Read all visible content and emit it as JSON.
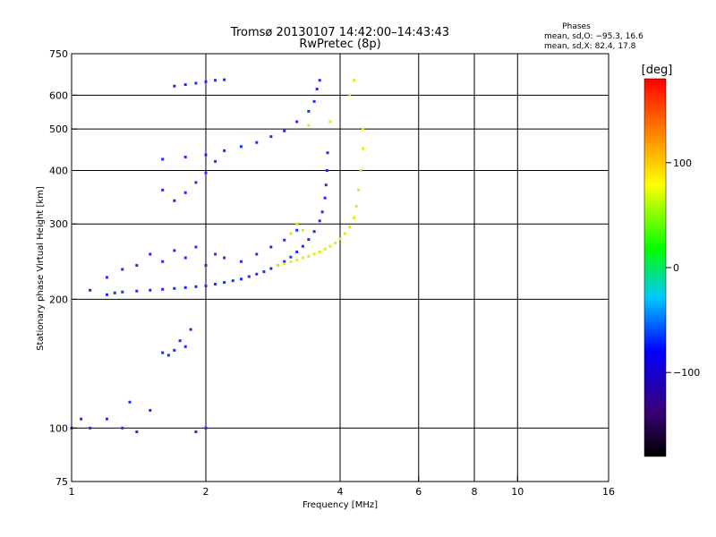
{
  "chart_data": {
    "type": "scatter",
    "title": "Tromsø 20130107 14:42:00–14:43:43",
    "subtitle": "RwPretec (8p)",
    "xlabel": "Frequency [MHz]",
    "ylabel": "Stationary phase Virtual Height [km]",
    "x_scale": "log",
    "y_scale": "log",
    "xlim": [
      1,
      16
    ],
    "ylim": [
      75,
      750
    ],
    "x_ticks": [
      {
        "v": 1,
        "label": "1"
      },
      {
        "v": 2,
        "label": "2"
      },
      {
        "v": 4,
        "label": "4"
      },
      {
        "v": 6,
        "label": "6"
      },
      {
        "v": 8,
        "label": "8"
      },
      {
        "v": 10,
        "label": "10"
      },
      {
        "v": 16,
        "label": "16"
      }
    ],
    "y_ticks": [
      {
        "v": 75,
        "label": "75"
      },
      {
        "v": 100,
        "label": "100"
      },
      {
        "v": 200,
        "label": "200"
      },
      {
        "v": 300,
        "label": "300"
      },
      {
        "v": 400,
        "label": "400"
      },
      {
        "v": 500,
        "label": "500"
      },
      {
        "v": 600,
        "label": "600"
      },
      {
        "v": 750,
        "label": "750"
      }
    ],
    "grid_x": [
      2,
      4,
      6,
      8,
      10
    ],
    "grid_y": [
      100,
      200,
      300,
      400,
      500,
      600
    ],
    "stats": {
      "heading": "Phases",
      "line_o": "mean, sd,O: −95.3, 16.6",
      "line_x": "mean, sd,X:  82.4, 17.8"
    },
    "colorbar": {
      "label": "[deg]",
      "range": [
        -180,
        180
      ],
      "ticks": [
        {
          "v": 100,
          "label": "100"
        },
        {
          "v": 0,
          "label": "0"
        },
        {
          "v": -100,
          "label": "−100"
        }
      ]
    },
    "series": [
      {
        "trace": "O-mode lower",
        "phase": -100,
        "points": [
          [
            1.2,
            205
          ],
          [
            1.25,
            207
          ],
          [
            1.3,
            208
          ],
          [
            1.4,
            209
          ],
          [
            1.5,
            210
          ],
          [
            1.6,
            211
          ],
          [
            1.7,
            212
          ],
          [
            1.8,
            213
          ],
          [
            1.9,
            214
          ],
          [
            2.0,
            215
          ],
          [
            2.1,
            217
          ],
          [
            2.2,
            219
          ],
          [
            2.3,
            221
          ],
          [
            2.4,
            223
          ],
          [
            2.5,
            226
          ],
          [
            2.6,
            229
          ],
          [
            2.7,
            232
          ],
          [
            2.8,
            236
          ],
          [
            2.9,
            240
          ],
          [
            3.0,
            245
          ],
          [
            3.1,
            251
          ],
          [
            3.2,
            258
          ],
          [
            3.3,
            266
          ],
          [
            3.4,
            276
          ],
          [
            3.5,
            288
          ],
          [
            3.6,
            305
          ],
          [
            3.65,
            320
          ],
          [
            3.7,
            345
          ],
          [
            3.72,
            370
          ],
          [
            3.74,
            400
          ],
          [
            3.75,
            440
          ]
        ]
      },
      {
        "trace": "O-mode upper branch",
        "phase": -100,
        "points": [
          [
            1.6,
            425
          ],
          [
            1.8,
            430
          ],
          [
            2.0,
            435
          ],
          [
            2.2,
            445
          ],
          [
            2.4,
            455
          ],
          [
            2.6,
            465
          ],
          [
            2.8,
            480
          ],
          [
            3.0,
            495
          ],
          [
            3.2,
            520
          ],
          [
            3.4,
            550
          ],
          [
            3.5,
            580
          ],
          [
            3.55,
            620
          ],
          [
            3.6,
            650
          ]
        ]
      },
      {
        "trace": "O-mode F1 scatter",
        "phase": -95,
        "points": [
          [
            1.1,
            210
          ],
          [
            1.2,
            225
          ],
          [
            1.3,
            235
          ],
          [
            1.4,
            240
          ],
          [
            1.5,
            255
          ],
          [
            1.6,
            245
          ],
          [
            1.7,
            260
          ],
          [
            1.8,
            250
          ],
          [
            1.9,
            265
          ],
          [
            2.0,
            240
          ],
          [
            2.1,
            255
          ],
          [
            2.2,
            250
          ],
          [
            2.4,
            245
          ],
          [
            2.6,
            255
          ],
          [
            2.8,
            265
          ],
          [
            3.0,
            275
          ],
          [
            3.2,
            290
          ]
        ]
      },
      {
        "trace": "O-mode high echoes",
        "phase": -105,
        "points": [
          [
            1.7,
            630
          ],
          [
            1.8,
            635
          ],
          [
            1.9,
            640
          ],
          [
            2.0,
            645
          ],
          [
            2.1,
            650
          ],
          [
            2.2,
            652
          ]
        ]
      },
      {
        "trace": "O-mode mid echoes",
        "phase": -110,
        "points": [
          [
            1.6,
            360
          ],
          [
            1.7,
            340
          ],
          [
            1.8,
            355
          ],
          [
            1.9,
            375
          ],
          [
            2.0,
            395
          ],
          [
            2.1,
            420
          ]
        ]
      },
      {
        "trace": "E-layer echoes",
        "phase": -100,
        "points": [
          [
            1.0,
            100
          ],
          [
            1.05,
            105
          ],
          [
            1.1,
            100
          ],
          [
            1.2,
            105
          ],
          [
            1.3,
            100
          ],
          [
            1.35,
            115
          ],
          [
            1.4,
            98
          ],
          [
            1.5,
            110
          ],
          [
            1.6,
            150
          ],
          [
            1.65,
            148
          ],
          [
            1.7,
            152
          ],
          [
            1.75,
            160
          ],
          [
            1.8,
            155
          ],
          [
            1.85,
            170
          ],
          [
            1.9,
            98
          ],
          [
            2.0,
            100
          ]
        ]
      },
      {
        "trace": "X-mode",
        "phase": 85,
        "points": [
          [
            2.9,
            240
          ],
          [
            3.0,
            242
          ],
          [
            3.1,
            245
          ],
          [
            3.2,
            247
          ],
          [
            3.3,
            250
          ],
          [
            3.4,
            252
          ],
          [
            3.5,
            255
          ],
          [
            3.6,
            258
          ],
          [
            3.7,
            262
          ],
          [
            3.8,
            266
          ],
          [
            3.9,
            271
          ],
          [
            4.0,
            277
          ],
          [
            4.1,
            285
          ],
          [
            4.2,
            295
          ],
          [
            4.3,
            310
          ],
          [
            4.35,
            330
          ],
          [
            4.4,
            360
          ],
          [
            4.45,
            400
          ],
          [
            4.5,
            450
          ],
          [
            4.5,
            500
          ]
        ]
      },
      {
        "trace": "X-mode outliers",
        "phase": 90,
        "points": [
          [
            3.4,
            510
          ],
          [
            3.8,
            520
          ],
          [
            4.2,
            600
          ],
          [
            4.3,
            650
          ],
          [
            3.1,
            285
          ],
          [
            3.2,
            300
          ],
          [
            3.3,
            290
          ]
        ]
      }
    ]
  }
}
